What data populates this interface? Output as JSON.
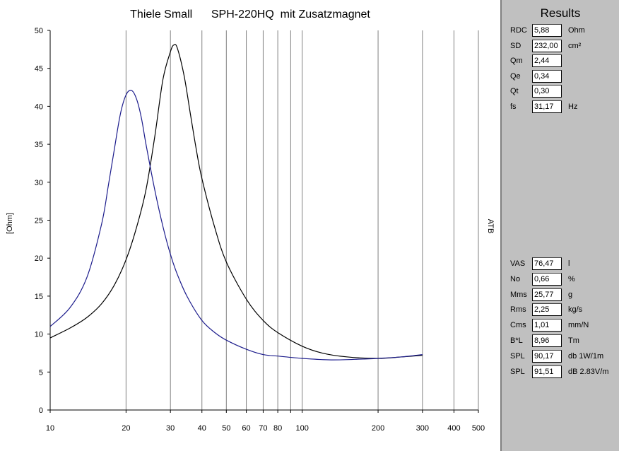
{
  "chart_data": {
    "type": "line",
    "title": "Thiele Small      SPH-220HQ  mit Zusatzmagnet",
    "ylabel": "[Ohm]",
    "y2label": "ATB",
    "xscale": "log",
    "xlim": [
      10,
      500
    ],
    "ylim": [
      0,
      50
    ],
    "xticks": [
      10,
      20,
      30,
      40,
      50,
      60,
      70,
      80,
      90,
      100,
      200,
      300,
      400,
      500
    ],
    "xtick_labels": [
      "10",
      "20",
      "30",
      "40",
      "50",
      "60",
      "70",
      "80",
      "",
      "100",
      "200",
      "300",
      "400",
      "500"
    ],
    "yticks": [
      0,
      5,
      10,
      15,
      20,
      25,
      30,
      35,
      40,
      45,
      50
    ],
    "grid": "vertical",
    "series": [
      {
        "color": "#000000",
        "x": [
          10,
          12,
          14,
          16,
          18,
          20,
          22,
          24,
          26,
          28,
          30,
          31,
          32,
          34,
          36,
          38,
          40,
          45,
          50,
          60,
          70,
          80,
          100,
          120,
          150,
          200,
          250,
          300
        ],
        "y": [
          9.5,
          10.8,
          12.2,
          14,
          16.5,
          19.8,
          24,
          29,
          36,
          43.5,
          47.2,
          48.1,
          47.6,
          44,
          39,
          34.3,
          30.5,
          24,
          19.5,
          14.6,
          11.8,
          10.2,
          8.4,
          7.5,
          7,
          6.8,
          7,
          7.2
        ]
      },
      {
        "color": "#1c1c8c",
        "x": [
          10,
          12,
          14,
          16,
          17,
          18,
          19,
          20,
          21,
          22,
          23,
          24,
          26,
          28,
          30,
          32,
          35,
          40,
          45,
          50,
          60,
          70,
          80,
          100,
          130,
          170,
          200,
          250,
          300
        ],
        "y": [
          11,
          13.5,
          17.5,
          24.5,
          29.5,
          34.5,
          39,
          41.5,
          42.1,
          41,
          38.5,
          35,
          29,
          24.2,
          20.5,
          17.8,
          14.9,
          11.8,
          10.2,
          9.2,
          8,
          7.3,
          7.1,
          6.8,
          6.6,
          6.7,
          6.8,
          7,
          7.3
        ]
      }
    ]
  },
  "results": {
    "title": "Results",
    "top_rows": [
      {
        "label": "RDC",
        "value": "5,88",
        "unit": "Ohm"
      },
      {
        "label": "SD",
        "value": "232,00",
        "unit": "cm²"
      },
      {
        "label": "Qm",
        "value": "2,44",
        "unit": ""
      },
      {
        "label": "Qe",
        "value": "0,34",
        "unit": ""
      },
      {
        "label": "Qt",
        "value": "0,30",
        "unit": ""
      },
      {
        "label": "fs",
        "value": "31,17",
        "unit": "Hz"
      }
    ],
    "bottom_rows": [
      {
        "label": "VAS",
        "value": "76,47",
        "unit": "l"
      },
      {
        "label": "No",
        "value": "0,66",
        "unit": "%"
      },
      {
        "label": "Mms",
        "value": "25,77",
        "unit": "g"
      },
      {
        "label": "Rms",
        "value": "2,25",
        "unit": "kg/s"
      },
      {
        "label": "Cms",
        "value": "1,01",
        "unit": "mm/N"
      },
      {
        "label": "B*L",
        "value": "8,96",
        "unit": "Tm"
      },
      {
        "label": "SPL",
        "value": "90,17",
        "unit": "db 1W/1m"
      },
      {
        "label": "SPL",
        "value": "91,51",
        "unit": "dB 2.83V/m"
      }
    ]
  }
}
